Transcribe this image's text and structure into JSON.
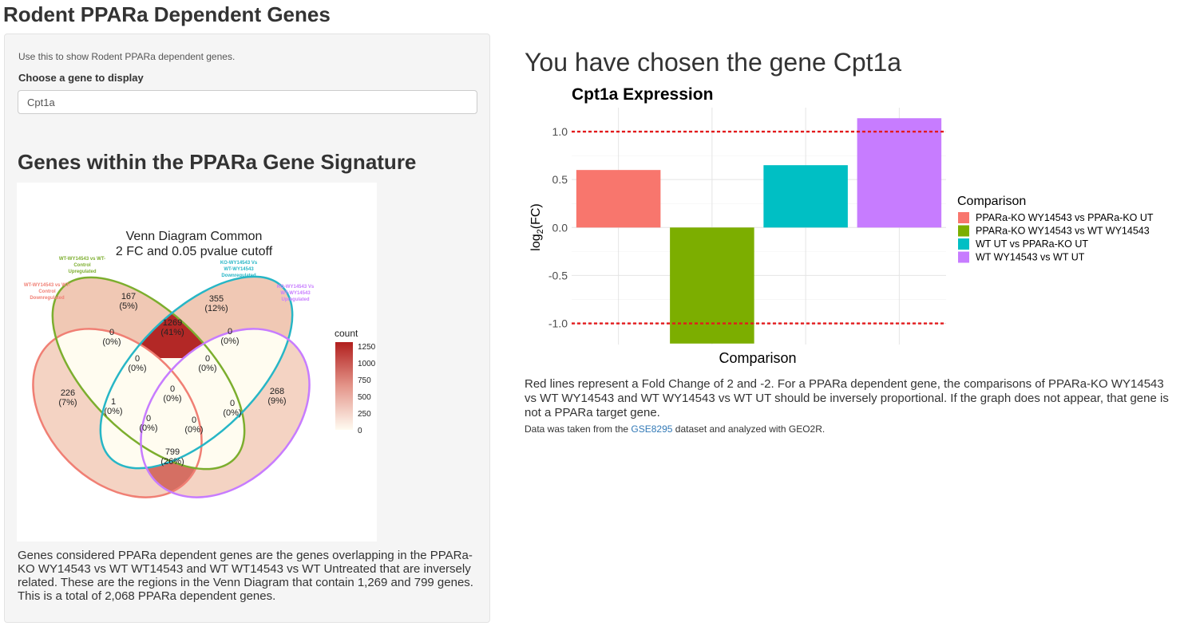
{
  "app": {
    "title": "Rodent PPARa Dependent Genes"
  },
  "sidebar": {
    "intro": "Use this to show Rodent PPARa dependent genes.",
    "gene_label": "Choose a gene to display",
    "gene_value": "Cpt1a",
    "signature_heading": "Genes within the PPARa Gene Signature",
    "signature_text": "Genes considered PPARa dependent genes are the genes overlapping in the PPARa-KO WY14543 vs WT WT14543 and WT WT14543 vs WT Untreated that are inversely related. These are the regions in the Venn Diagram that contain 1,269 and 799 genes. This is a total of 2,068 PPARa dependent genes."
  },
  "venn": {
    "title_line1": "Venn Diagram Common",
    "title_line2": "2 FC and 0.05 pvalue cutoff",
    "sets": [
      {
        "lines": [
          "WT-WY14543 vs WT-",
          "Control",
          "Downregulated"
        ],
        "color": "#f07f74"
      },
      {
        "lines": [
          "WT-WY14543 vs WT-",
          "Control",
          "Upregulated"
        ],
        "color": "#7cae2e"
      },
      {
        "lines": [
          "KO-WY14543 Vs",
          "WT-WY14543",
          "Downregulated"
        ],
        "color": "#27b6c6"
      },
      {
        "lines": [
          "KO-WY14543 Vs",
          "WT-WY14543",
          "Upregulated"
        ],
        "color": "#c77cff"
      }
    ],
    "regions": [
      {
        "count": "226",
        "pct": "(7%)"
      },
      {
        "count": "167",
        "pct": "(5%)"
      },
      {
        "count": "355",
        "pct": "(12%)"
      },
      {
        "count": "268",
        "pct": "(9%)"
      },
      {
        "count": "1269",
        "pct": "(41%)"
      },
      {
        "count": "0",
        "pct": "(0%)"
      },
      {
        "count": "0",
        "pct": "(0%)"
      },
      {
        "count": "0",
        "pct": "(0%)"
      },
      {
        "count": "0",
        "pct": "(0%)"
      },
      {
        "count": "1",
        "pct": "(0%)"
      },
      {
        "count": "0",
        "pct": "(0%)"
      },
      {
        "count": "0",
        "pct": "(0%)"
      },
      {
        "count": "0",
        "pct": "(0%)"
      },
      {
        "count": "0",
        "pct": "(0%)"
      },
      {
        "count": "799",
        "pct": "(26%)"
      }
    ],
    "legend_title": "count",
    "legend_ticks": [
      "1250",
      "1000",
      "750",
      "500",
      "250",
      "0"
    ]
  },
  "main": {
    "heading": "You have chosen the gene Cpt1a",
    "note": "Red lines represent a Fold Change of 2 and -2. For a PPARa dependent gene, the comparisons of PPARa-KO WY14543 vs WT WY14543 and WT WY14543 vs WT UT should be inversely proportional. If the graph does not appear, that gene is not a PPARa target gene.",
    "source_before": "Data was taken from the ",
    "source_link": "GSE8295",
    "source_after": " dataset and analyzed with GEO2R."
  },
  "chart_data": {
    "type": "bar",
    "title": "Cpt1a Expression",
    "xlabel": "Comparison",
    "ylabel": "log2(FC)",
    "ylim": [
      -1.22,
      1.25
    ],
    "yticks": [
      -1.0,
      -0.5,
      0.0,
      0.5,
      1.0
    ],
    "ytick_labels": [
      "-1.0",
      "-0.5",
      "0.0",
      "0.5",
      "1.0"
    ],
    "reference_lines": [
      1.0,
      -1.0
    ],
    "reference_line_color": "#e31a1c",
    "legend_title": "Comparison",
    "legend_position": "right",
    "grid": true,
    "categories": [
      "PPARa-KO WY14543 vs PPARa-KO UT",
      "PPARa-KO WY14543 vs WT WY14543",
      "WT UT vs PPARa-KO UT",
      "WT WY14543 vs WT UT"
    ],
    "values": [
      0.6,
      -1.21,
      0.65,
      1.14
    ],
    "colors": [
      "#f8766d",
      "#7cae00",
      "#00bfc4",
      "#c77cff"
    ]
  }
}
